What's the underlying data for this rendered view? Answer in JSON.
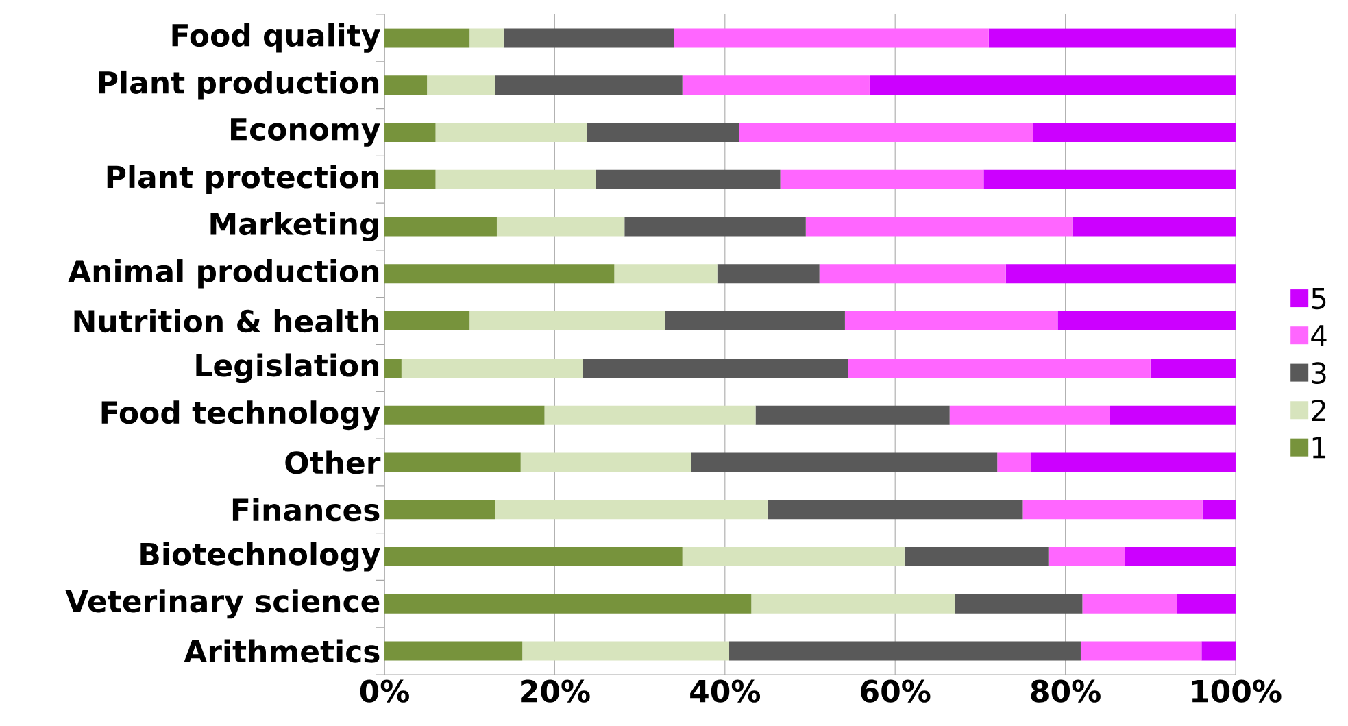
{
  "chart_data": {
    "type": "bar",
    "orientation": "horizontal",
    "stacked": true,
    "categories": [
      "Food quality",
      "Plant production",
      "Economy",
      "Plant protection",
      "Marketing",
      "Animal production",
      "Nutrition & health",
      "Legislation",
      "Food technology",
      "Other",
      "Finances",
      "Biotechnology",
      "Veterinary science",
      "Arithmetics"
    ],
    "series": [
      {
        "name": "1",
        "color": "#77933c",
        "values": [
          10,
          5,
          6,
          6,
          13.2,
          27,
          10,
          2,
          18.8,
          16,
          13,
          35,
          43.1,
          16.2
        ]
      },
      {
        "name": "2",
        "color": "#d7e4bd",
        "values": [
          4,
          8,
          17.8,
          18.8,
          15,
          12.1,
          23,
          21.3,
          24.8,
          20,
          32,
          26.1,
          23.9,
          24.3
        ]
      },
      {
        "name": "3",
        "color": "#595959",
        "values": [
          20,
          22,
          17.9,
          21.7,
          21.3,
          12,
          21.1,
          31.2,
          22.8,
          36,
          30,
          16.9,
          15,
          41.3
        ]
      },
      {
        "name": "4",
        "color": "#ff66ff",
        "values": [
          37,
          22,
          34.5,
          23.9,
          31.3,
          21.9,
          25,
          35.5,
          18.8,
          4,
          21.1,
          9,
          11.1,
          14.2
        ]
      },
      {
        "name": "5",
        "color": "#cc00ff",
        "values": [
          29,
          43,
          23.8,
          29.6,
          19.2,
          27,
          20.9,
          10,
          14.8,
          24,
          3.9,
          13,
          6.9,
          4
        ]
      }
    ],
    "xlim": [
      0,
      100
    ],
    "xticks": [
      {
        "value": 0,
        "label": "0%"
      },
      {
        "value": 20,
        "label": "20%"
      },
      {
        "value": 40,
        "label": "40%"
      },
      {
        "value": 60,
        "label": "60%"
      },
      {
        "value": 80,
        "label": "80%"
      },
      {
        "value": 100,
        "label": "100%"
      }
    ],
    "grid": "x",
    "legend": "right"
  }
}
